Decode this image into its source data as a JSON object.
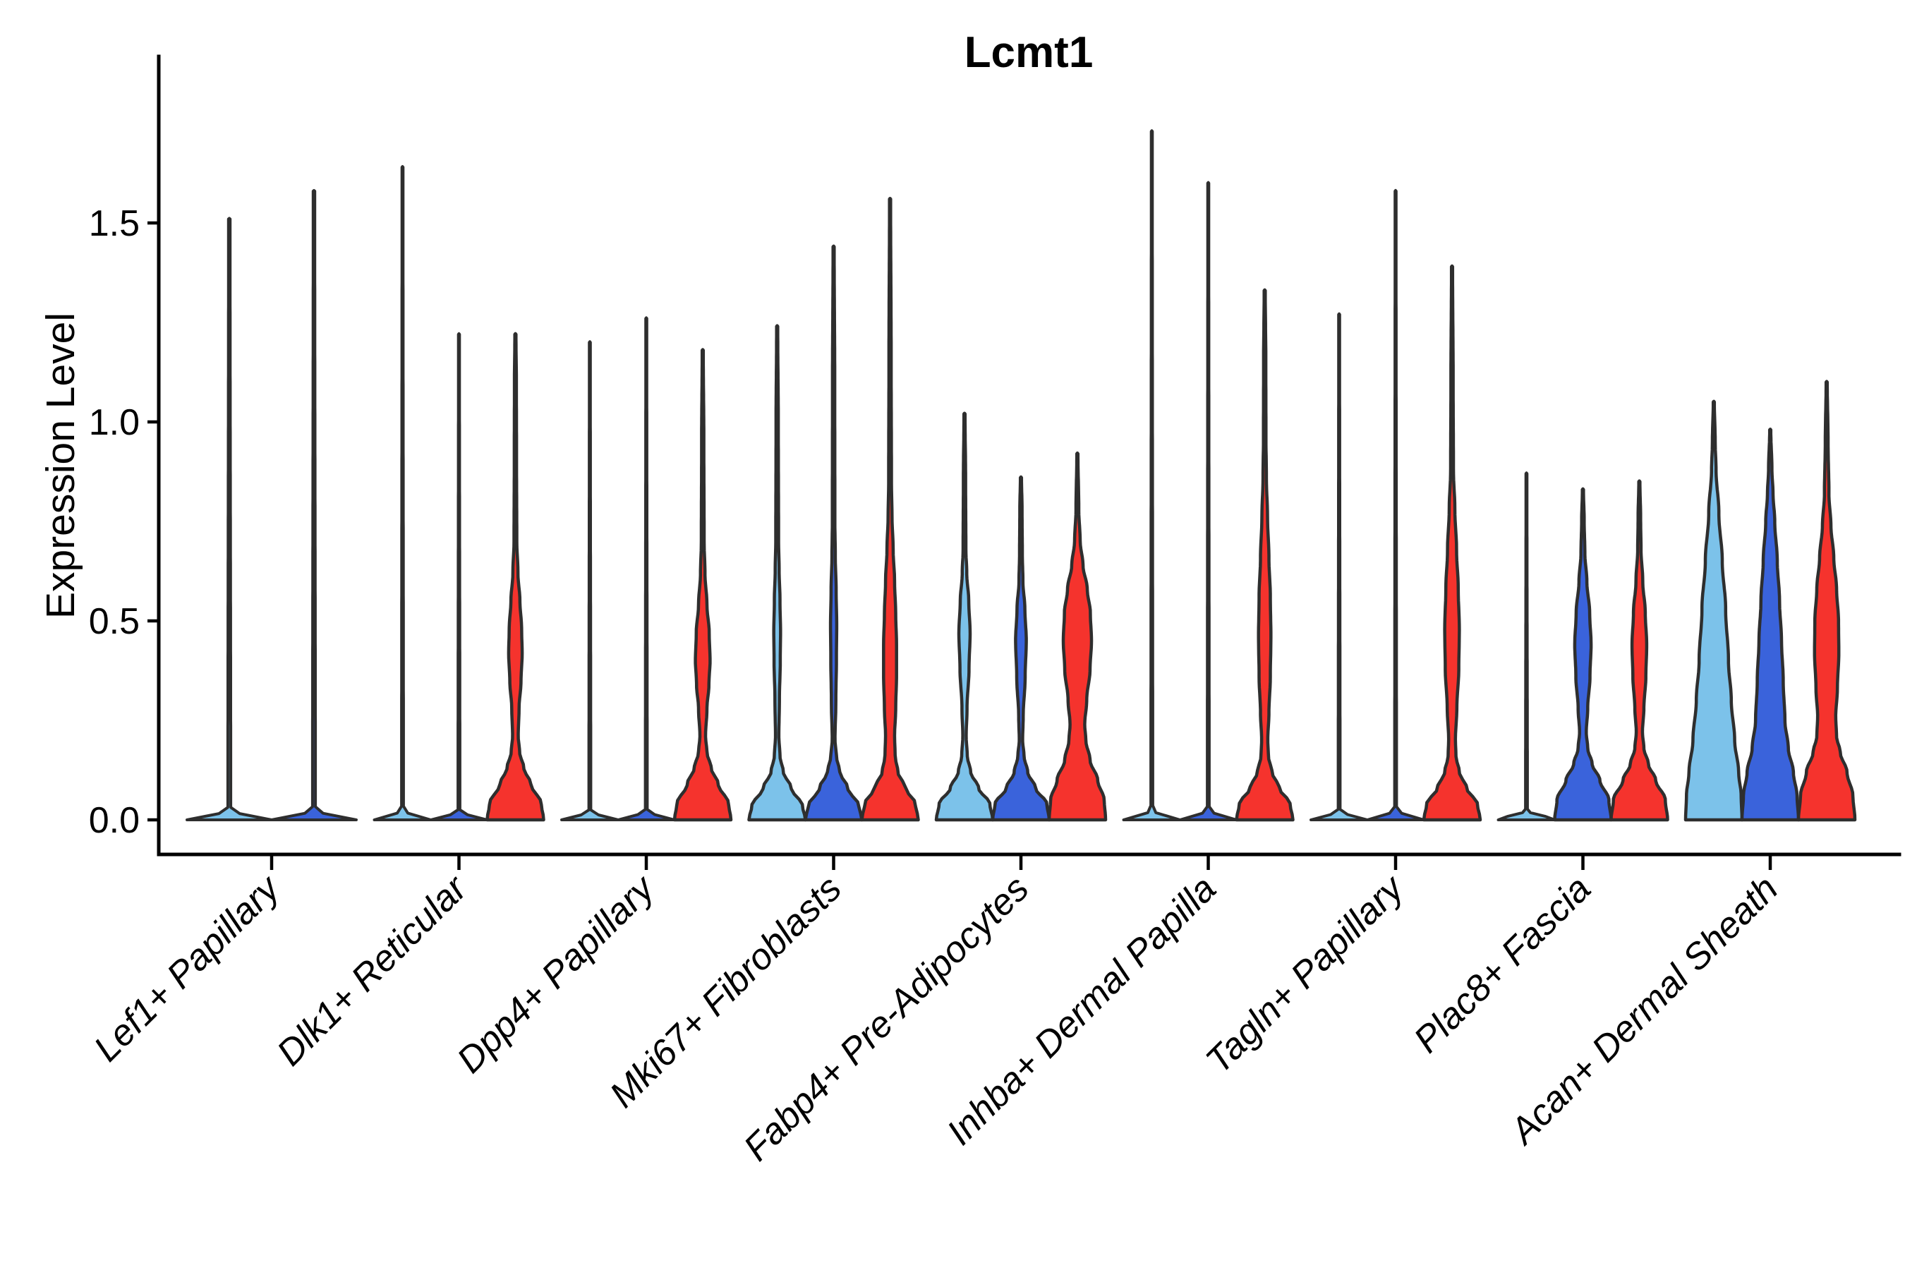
{
  "title": "Lcmt1",
  "chart_data": {
    "type": "violin",
    "title": "Lcmt1",
    "ylabel": "Expression Level",
    "xlabel": "",
    "legend_position": "none",
    "grid": false,
    "ylim": [
      -0.09,
      1.92
    ],
    "ytick_labels": [
      "0.0",
      "0.5",
      "1.0",
      "1.5"
    ],
    "ytick_values": [
      0.0,
      0.5,
      1.0,
      1.5
    ],
    "categories": [
      "Lef1+ Papillary",
      "Dlk1+ Reticular",
      "Dpp4+ Papillary",
      "Mki67+ Fibroblasts",
      "Fabp4+ Pre-Adipocytes",
      "Inhba+ Dermal Papilla",
      "Tagln+ Papillary",
      "Plac8+ Fascia",
      "Acan+ Dermal Sheath"
    ],
    "colors": {
      "lightblue": "#7CC2EA",
      "blue": "#3A63DB",
      "red": "#F5332D",
      "outline": "#2E2E2E",
      "axis": "#000000",
      "text": "#000000"
    },
    "violins": [
      {
        "category": "Lef1+ Papillary",
        "ci": 0,
        "slot": 0,
        "nslots": 2,
        "color": "lightblue",
        "max": 1.51,
        "kind": "flat"
      },
      {
        "category": "Lef1+ Papillary",
        "ci": 0,
        "slot": 1,
        "nslots": 2,
        "color": "blue",
        "max": 1.58,
        "kind": "flat"
      },
      {
        "category": "Dlk1+ Reticular",
        "ci": 1,
        "slot": 0,
        "nslots": 3,
        "color": "lightblue",
        "max": 1.64,
        "kind": "flat"
      },
      {
        "category": "Dlk1+ Reticular",
        "ci": 1,
        "slot": 1,
        "nslots": 3,
        "color": "blue",
        "max": 1.22,
        "kind": "flat"
      },
      {
        "category": "Dlk1+ Reticular",
        "ci": 1,
        "slot": 2,
        "nslots": 3,
        "color": "red",
        "max": 1.22,
        "kind": "shaped",
        "profile": [
          [
            0,
            1
          ],
          [
            0.04,
            0.92
          ],
          [
            0.09,
            0.55
          ],
          [
            0.13,
            0.3
          ],
          [
            0.17,
            0.15
          ],
          [
            0.21,
            0.1
          ],
          [
            0.28,
            0.13
          ],
          [
            0.35,
            0.2
          ],
          [
            0.42,
            0.24
          ],
          [
            0.48,
            0.22
          ],
          [
            0.55,
            0.16
          ],
          [
            0.62,
            0.09
          ],
          [
            0.7,
            0.05
          ],
          [
            0.9,
            0.04
          ],
          [
            1.1,
            0.035
          ],
          [
            1.22,
            0.02
          ]
        ]
      },
      {
        "category": "Dpp4+ Papillary",
        "ci": 2,
        "slot": 0,
        "nslots": 3,
        "color": "lightblue",
        "max": 1.2,
        "kind": "flat"
      },
      {
        "category": "Dpp4+ Papillary",
        "ci": 2,
        "slot": 1,
        "nslots": 3,
        "color": "blue",
        "max": 1.26,
        "kind": "flat"
      },
      {
        "category": "Dpp4+ Papillary",
        "ci": 2,
        "slot": 2,
        "nslots": 3,
        "color": "red",
        "max": 1.18,
        "kind": "shaped",
        "profile": [
          [
            0,
            1
          ],
          [
            0.04,
            0.92
          ],
          [
            0.09,
            0.55
          ],
          [
            0.13,
            0.3
          ],
          [
            0.17,
            0.15
          ],
          [
            0.21,
            0.1
          ],
          [
            0.28,
            0.15
          ],
          [
            0.34,
            0.22
          ],
          [
            0.4,
            0.26
          ],
          [
            0.47,
            0.23
          ],
          [
            0.54,
            0.15
          ],
          [
            0.62,
            0.08
          ],
          [
            0.7,
            0.05
          ],
          [
            0.95,
            0.04
          ],
          [
            1.18,
            0.02
          ]
        ]
      },
      {
        "category": "Mki67+ Fibroblasts",
        "ci": 3,
        "slot": 0,
        "nslots": 3,
        "color": "lightblue",
        "max": 1.24,
        "kind": "shaped",
        "profile": [
          [
            0,
            1
          ],
          [
            0.035,
            0.9
          ],
          [
            0.08,
            0.5
          ],
          [
            0.12,
            0.22
          ],
          [
            0.16,
            0.1
          ],
          [
            0.21,
            0.06
          ],
          [
            0.3,
            0.08
          ],
          [
            0.4,
            0.11
          ],
          [
            0.47,
            0.12
          ],
          [
            0.55,
            0.1
          ],
          [
            0.63,
            0.07
          ],
          [
            0.7,
            0.05
          ],
          [
            1.0,
            0.04
          ],
          [
            1.24,
            0.02
          ]
        ]
      },
      {
        "category": "Mki67+ Fibroblasts",
        "ci": 3,
        "slot": 1,
        "nslots": 3,
        "color": "blue",
        "max": 1.44,
        "kind": "shaped",
        "profile": [
          [
            0,
            1
          ],
          [
            0.035,
            0.9
          ],
          [
            0.08,
            0.5
          ],
          [
            0.12,
            0.22
          ],
          [
            0.16,
            0.1
          ],
          [
            0.2,
            0.05
          ],
          [
            0.3,
            0.08
          ],
          [
            0.4,
            0.1
          ],
          [
            0.49,
            0.11
          ],
          [
            0.58,
            0.09
          ],
          [
            0.66,
            0.06
          ],
          [
            0.75,
            0.045
          ],
          [
            1.1,
            0.04
          ],
          [
            1.44,
            0.02
          ]
        ]
      },
      {
        "category": "Mki67+ Fibroblasts",
        "ci": 3,
        "slot": 2,
        "nslots": 3,
        "color": "red",
        "max": 1.56,
        "kind": "shaped",
        "profile": [
          [
            0,
            1
          ],
          [
            0.04,
            0.9
          ],
          [
            0.08,
            0.55
          ],
          [
            0.12,
            0.28
          ],
          [
            0.16,
            0.18
          ],
          [
            0.21,
            0.16
          ],
          [
            0.28,
            0.2
          ],
          [
            0.36,
            0.23
          ],
          [
            0.44,
            0.23
          ],
          [
            0.52,
            0.2
          ],
          [
            0.6,
            0.16
          ],
          [
            0.68,
            0.11
          ],
          [
            0.76,
            0.07
          ],
          [
            0.85,
            0.05
          ],
          [
            1.15,
            0.04
          ],
          [
            1.56,
            0.02
          ]
        ]
      },
      {
        "category": "Fabp4+ Pre-Adipocytes",
        "ci": 4,
        "slot": 0,
        "nslots": 3,
        "color": "lightblue",
        "max": 1.02,
        "kind": "shaped",
        "profile": [
          [
            0,
            1
          ],
          [
            0.04,
            0.9
          ],
          [
            0.08,
            0.5
          ],
          [
            0.12,
            0.22
          ],
          [
            0.16,
            0.1
          ],
          [
            0.21,
            0.06
          ],
          [
            0.28,
            0.09
          ],
          [
            0.38,
            0.16
          ],
          [
            0.47,
            0.2
          ],
          [
            0.55,
            0.15
          ],
          [
            0.62,
            0.08
          ],
          [
            0.68,
            0.05
          ],
          [
            0.85,
            0.04
          ],
          [
            1.02,
            0.02
          ]
        ]
      },
      {
        "category": "Fabp4+ Pre-Adipocytes",
        "ci": 4,
        "slot": 1,
        "nslots": 3,
        "color": "blue",
        "max": 0.86,
        "kind": "shaped",
        "profile": [
          [
            0,
            1
          ],
          [
            0.04,
            0.92
          ],
          [
            0.08,
            0.52
          ],
          [
            0.12,
            0.24
          ],
          [
            0.16,
            0.11
          ],
          [
            0.2,
            0.06
          ],
          [
            0.26,
            0.08
          ],
          [
            0.36,
            0.15
          ],
          [
            0.45,
            0.19
          ],
          [
            0.53,
            0.14
          ],
          [
            0.6,
            0.07
          ],
          [
            0.67,
            0.05
          ],
          [
            0.78,
            0.04
          ],
          [
            0.86,
            0.02
          ]
        ]
      },
      {
        "category": "Fabp4+ Pre-Adipocytes",
        "ci": 4,
        "slot": 2,
        "nslots": 3,
        "color": "red",
        "max": 0.92,
        "kind": "shaped",
        "profile": [
          [
            0,
            1
          ],
          [
            0.05,
            0.95
          ],
          [
            0.1,
            0.72
          ],
          [
            0.15,
            0.45
          ],
          [
            0.2,
            0.3
          ],
          [
            0.24,
            0.26
          ],
          [
            0.3,
            0.33
          ],
          [
            0.38,
            0.45
          ],
          [
            0.45,
            0.5
          ],
          [
            0.52,
            0.46
          ],
          [
            0.58,
            0.35
          ],
          [
            0.64,
            0.2
          ],
          [
            0.7,
            0.1
          ],
          [
            0.78,
            0.05
          ],
          [
            0.92,
            0.02
          ]
        ]
      },
      {
        "category": "Inhba+ Dermal Papilla",
        "ci": 5,
        "slot": 0,
        "nslots": 3,
        "color": "lightblue",
        "max": 1.73,
        "kind": "flat"
      },
      {
        "category": "Inhba+ Dermal Papilla",
        "ci": 5,
        "slot": 1,
        "nslots": 3,
        "color": "blue",
        "max": 1.6,
        "kind": "flat"
      },
      {
        "category": "Inhba+ Dermal Papilla",
        "ci": 5,
        "slot": 2,
        "nslots": 3,
        "color": "red",
        "max": 1.33,
        "kind": "shaped",
        "profile": [
          [
            0,
            1
          ],
          [
            0.04,
            0.9
          ],
          [
            0.08,
            0.52
          ],
          [
            0.12,
            0.26
          ],
          [
            0.16,
            0.13
          ],
          [
            0.2,
            0.11
          ],
          [
            0.27,
            0.15
          ],
          [
            0.36,
            0.2
          ],
          [
            0.46,
            0.22
          ],
          [
            0.56,
            0.2
          ],
          [
            0.66,
            0.15
          ],
          [
            0.76,
            0.1
          ],
          [
            0.86,
            0.06
          ],
          [
            0.96,
            0.045
          ],
          [
            1.15,
            0.04
          ],
          [
            1.33,
            0.02
          ]
        ]
      },
      {
        "category": "Tagln+ Papillary",
        "ci": 6,
        "slot": 0,
        "nslots": 3,
        "color": "lightblue",
        "max": 1.27,
        "kind": "flat"
      },
      {
        "category": "Tagln+ Papillary",
        "ci": 6,
        "slot": 1,
        "nslots": 3,
        "color": "blue",
        "max": 1.58,
        "kind": "flat"
      },
      {
        "category": "Tagln+ Papillary",
        "ci": 6,
        "slot": 2,
        "nslots": 3,
        "color": "red",
        "max": 1.39,
        "kind": "shaped",
        "profile": [
          [
            0,
            1
          ],
          [
            0.04,
            0.9
          ],
          [
            0.08,
            0.52
          ],
          [
            0.12,
            0.26
          ],
          [
            0.16,
            0.14
          ],
          [
            0.2,
            0.12
          ],
          [
            0.28,
            0.17
          ],
          [
            0.38,
            0.24
          ],
          [
            0.48,
            0.26
          ],
          [
            0.58,
            0.22
          ],
          [
            0.68,
            0.16
          ],
          [
            0.78,
            0.1
          ],
          [
            0.88,
            0.05
          ],
          [
            1.1,
            0.04
          ],
          [
            1.39,
            0.02
          ]
        ]
      },
      {
        "category": "Plac8+ Fascia",
        "ci": 7,
        "slot": 0,
        "nslots": 3,
        "color": "lightblue",
        "max": 0.87,
        "kind": "flat"
      },
      {
        "category": "Plac8+ Fascia",
        "ci": 7,
        "slot": 1,
        "nslots": 3,
        "color": "blue",
        "max": 0.83,
        "kind": "shaped",
        "profile": [
          [
            0,
            1
          ],
          [
            0.05,
            0.92
          ],
          [
            0.1,
            0.6
          ],
          [
            0.14,
            0.33
          ],
          [
            0.18,
            0.17
          ],
          [
            0.22,
            0.12
          ],
          [
            0.28,
            0.17
          ],
          [
            0.36,
            0.25
          ],
          [
            0.44,
            0.29
          ],
          [
            0.52,
            0.24
          ],
          [
            0.6,
            0.14
          ],
          [
            0.67,
            0.07
          ],
          [
            0.75,
            0.045
          ],
          [
            0.83,
            0.02
          ]
        ]
      },
      {
        "category": "Plac8+ Fascia",
        "ci": 7,
        "slot": 2,
        "nslots": 3,
        "color": "red",
        "max": 0.85,
        "kind": "shaped",
        "profile": [
          [
            0,
            1
          ],
          [
            0.05,
            0.92
          ],
          [
            0.1,
            0.58
          ],
          [
            0.14,
            0.32
          ],
          [
            0.18,
            0.16
          ],
          [
            0.22,
            0.11
          ],
          [
            0.28,
            0.16
          ],
          [
            0.36,
            0.23
          ],
          [
            0.44,
            0.26
          ],
          [
            0.52,
            0.21
          ],
          [
            0.6,
            0.12
          ],
          [
            0.68,
            0.06
          ],
          [
            0.76,
            0.045
          ],
          [
            0.85,
            0.02
          ]
        ]
      },
      {
        "category": "Acan+ Dermal Sheath",
        "ci": 8,
        "slot": 0,
        "nslots": 3,
        "color": "lightblue",
        "max": 1.05,
        "kind": "shaped",
        "profile": [
          [
            0,
            1
          ],
          [
            0.06,
            0.97
          ],
          [
            0.12,
            0.88
          ],
          [
            0.2,
            0.74
          ],
          [
            0.3,
            0.62
          ],
          [
            0.4,
            0.52
          ],
          [
            0.53,
            0.42
          ],
          [
            0.65,
            0.3
          ],
          [
            0.77,
            0.18
          ],
          [
            0.88,
            0.08
          ],
          [
            0.95,
            0.05
          ],
          [
            1.05,
            0.02
          ]
        ]
      },
      {
        "category": "Acan+ Dermal Sheath",
        "ci": 8,
        "slot": 1,
        "nslots": 3,
        "color": "blue",
        "max": 0.98,
        "kind": "shaped",
        "profile": [
          [
            0,
            1
          ],
          [
            0.06,
            0.95
          ],
          [
            0.12,
            0.82
          ],
          [
            0.18,
            0.64
          ],
          [
            0.25,
            0.52
          ],
          [
            0.35,
            0.46
          ],
          [
            0.45,
            0.4
          ],
          [
            0.55,
            0.33
          ],
          [
            0.65,
            0.25
          ],
          [
            0.75,
            0.16
          ],
          [
            0.82,
            0.1
          ],
          [
            0.88,
            0.06
          ],
          [
            0.98,
            0.02
          ]
        ]
      },
      {
        "category": "Acan+ Dermal Sheath",
        "ci": 8,
        "slot": 2,
        "nslots": 3,
        "color": "red",
        "max": 1.1,
        "kind": "shaped",
        "profile": [
          [
            0,
            1
          ],
          [
            0.06,
            0.93
          ],
          [
            0.12,
            0.72
          ],
          [
            0.17,
            0.48
          ],
          [
            0.21,
            0.35
          ],
          [
            0.26,
            0.32
          ],
          [
            0.33,
            0.38
          ],
          [
            0.42,
            0.43
          ],
          [
            0.5,
            0.42
          ],
          [
            0.58,
            0.35
          ],
          [
            0.66,
            0.25
          ],
          [
            0.74,
            0.15
          ],
          [
            0.82,
            0.08
          ],
          [
            0.95,
            0.05
          ],
          [
            1.1,
            0.02
          ]
        ]
      }
    ]
  }
}
